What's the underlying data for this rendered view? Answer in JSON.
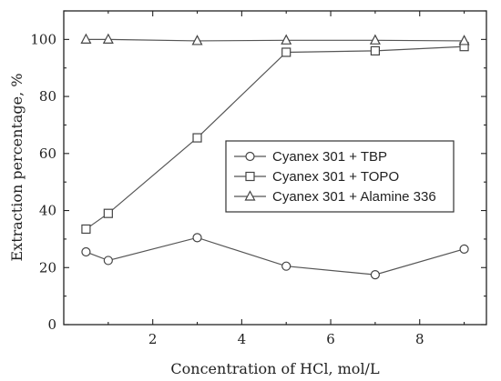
{
  "chart_data": {
    "type": "line",
    "xlabel": "Concentration of HCl, mol/L",
    "ylabel": "Extraction percentage, %",
    "xlim": [
      0,
      9.5
    ],
    "ylim": [
      0,
      110
    ],
    "xticks": [
      2,
      4,
      6,
      8
    ],
    "yticks": [
      0,
      20,
      40,
      60,
      80,
      100
    ],
    "grid": false,
    "legend_position": "center-right",
    "series": [
      {
        "name": "Cyanex 301 + TBP",
        "marker": "circle",
        "x": [
          0.5,
          1,
          3,
          5,
          7,
          9
        ],
        "y": [
          25.5,
          22.5,
          30.5,
          20.5,
          17.5,
          26.5
        ]
      },
      {
        "name": "Cyanex 301 + TOPO",
        "marker": "square",
        "x": [
          0.5,
          1,
          3,
          5,
          7,
          9
        ],
        "y": [
          33.5,
          39.0,
          65.5,
          95.5,
          96.0,
          97.5
        ]
      },
      {
        "name": "Cyanex 301 + Alamine 336",
        "marker": "triangle",
        "x": [
          0.5,
          1,
          3,
          5,
          7,
          9
        ],
        "y": [
          100,
          100,
          99.5,
          99.7,
          99.7,
          99.5
        ]
      }
    ]
  }
}
